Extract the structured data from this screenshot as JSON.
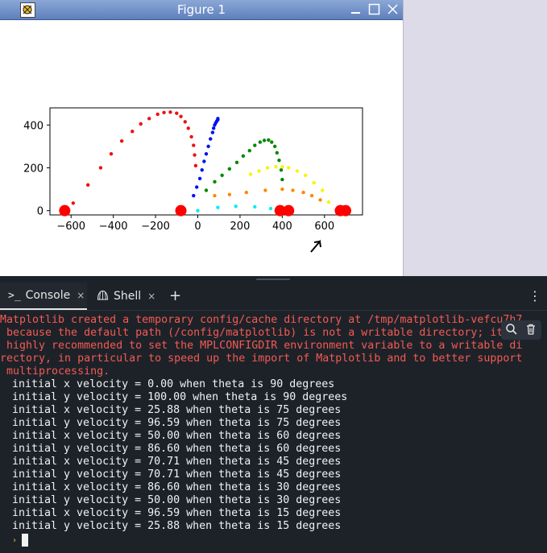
{
  "figure_window": {
    "title": "Figure 1",
    "colors": {
      "titlebar": "#6f8fca",
      "background": "#ffffff"
    }
  },
  "chart_data": {
    "type": "scatter",
    "title": "",
    "xlabel": "",
    "ylabel": "",
    "xlim": [
      -700,
      780
    ],
    "ylim": [
      -20,
      480
    ],
    "xticks": [
      "−600",
      "−400",
      "−200",
      "0",
      "200",
      "400",
      "600"
    ],
    "yticks": [
      "0",
      "200",
      "400"
    ],
    "xtick_values": [
      -600,
      -400,
      -200,
      0,
      200,
      400,
      600
    ],
    "ytick_values": [
      0,
      200,
      400
    ],
    "grid": false,
    "series": [
      {
        "color": "#ee1111",
        "points": [
          [
            -590,
            35
          ],
          [
            -520,
            120
          ],
          [
            -460,
            200
          ],
          [
            -410,
            265
          ],
          [
            -360,
            325
          ],
          [
            -310,
            370
          ],
          [
            -270,
            405
          ],
          [
            -230,
            430
          ],
          [
            -190,
            450
          ],
          [
            -160,
            458
          ],
          [
            -130,
            460
          ],
          [
            -100,
            455
          ],
          [
            -80,
            440
          ],
          [
            -60,
            415
          ],
          [
            -45,
            385
          ],
          [
            -30,
            345
          ],
          [
            -20,
            305
          ],
          [
            -15,
            260
          ],
          [
            -10,
            210
          ]
        ]
      },
      {
        "color": "#0011ee",
        "points": [
          [
            -20,
            70
          ],
          [
            -5,
            110
          ],
          [
            10,
            150
          ],
          [
            20,
            190
          ],
          [
            30,
            230
          ],
          [
            40,
            265
          ],
          [
            50,
            300
          ],
          [
            60,
            335
          ],
          [
            70,
            365
          ],
          [
            75,
            385
          ],
          [
            80,
            400
          ],
          [
            85,
            410
          ],
          [
            90,
            418
          ],
          [
            95,
            425
          ],
          [
            95,
            430
          ]
        ]
      },
      {
        "color": "#008800",
        "points": [
          [
            40,
            95
          ],
          [
            80,
            135
          ],
          [
            115,
            165
          ],
          [
            150,
            195
          ],
          [
            185,
            225
          ],
          [
            215,
            255
          ],
          [
            245,
            280
          ],
          [
            270,
            305
          ],
          [
            295,
            320
          ],
          [
            315,
            328
          ],
          [
            335,
            330
          ],
          [
            350,
            320
          ],
          [
            365,
            300
          ],
          [
            375,
            270
          ],
          [
            385,
            235
          ],
          [
            395,
            190
          ],
          [
            400,
            145
          ]
        ]
      },
      {
        "color": "#f5f500",
        "points": [
          [
            250,
            170
          ],
          [
            290,
            185
          ],
          [
            330,
            200
          ],
          [
            370,
            205
          ],
          [
            400,
            205
          ],
          [
            430,
            200
          ],
          [
            470,
            185
          ],
          [
            510,
            165
          ],
          [
            550,
            130
          ],
          [
            590,
            95
          ],
          [
            620,
            40
          ]
        ]
      },
      {
        "color": "#ff8800",
        "points": [
          [
            80,
            70
          ],
          [
            150,
            75
          ],
          [
            230,
            85
          ],
          [
            320,
            95
          ],
          [
            400,
            100
          ],
          [
            450,
            95
          ],
          [
            500,
            85
          ],
          [
            540,
            70
          ],
          [
            580,
            50
          ]
        ]
      },
      {
        "color": "#00eeee",
        "points": [
          [
            0,
            0
          ],
          [
            95,
            15
          ],
          [
            180,
            20
          ],
          [
            270,
            18
          ],
          [
            345,
            10
          ]
        ]
      }
    ],
    "markers": {
      "color": "#ff0000",
      "x": [
        -630,
        -80,
        390,
        430,
        675,
        700
      ],
      "y": [
        0,
        0,
        0,
        0,
        0,
        0
      ]
    }
  },
  "tabs": {
    "console": {
      "icon": ">_",
      "label": "Console",
      "close": "×"
    },
    "shell": {
      "label": "Shell",
      "close": "×"
    },
    "add": "+",
    "menu": "⋮"
  },
  "console": {
    "error_lines": [
      "Matplotlib created a temporary config/cache directory at /tmp/matplotlib-vefcu7h7",
      " because the default path (/config/matplotlib) is not a writable directory; it is",
      " highly recommended to set the MPLCONFIGDIR environment variable to a writable di",
      "rectory, in particular to speed up the import of Matplotlib and to better support",
      " multiprocessing."
    ],
    "output_lines": [
      "initial x velocity = 0.00 when theta is 90 degrees",
      "initial y velocity = 100.00 when theta is 90 degrees",
      "initial x velocity = 25.88 when theta is 75 degrees",
      "initial y velocity = 96.59 when theta is 75 degrees",
      "initial x velocity = 50.00 when theta is 60 degrees",
      "initial y velocity = 86.60 when theta is 60 degrees",
      "initial x velocity = 70.71 when theta is 45 degrees",
      "initial y velocity = 70.71 when theta is 45 degrees",
      "initial x velocity = 86.60 when theta is 30 degrees",
      "initial y velocity = 50.00 when theta is 30 degrees",
      "initial x velocity = 96.59 when theta is 15 degrees",
      "initial y velocity = 25.88 when theta is 15 degrees"
    ],
    "prompt": "›",
    "colors": {
      "error": "#f55a52",
      "output": "#f2f2f2",
      "background": "#1d2229"
    }
  }
}
